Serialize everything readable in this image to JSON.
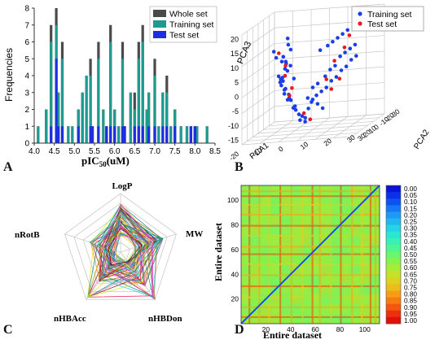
{
  "panels": {
    "a": "A",
    "b": "B",
    "c": "C",
    "d": "D"
  },
  "chart_data": [
    {
      "type": "bar",
      "xlabel": "pIC50(uM)",
      "xlabel_main": "pIC",
      "xlabel_sub": "50",
      "xlabel_unit": "(uM)",
      "ylabel": "Frequencies",
      "xlim": [
        4.0,
        8.5
      ],
      "ylim": [
        0,
        8
      ],
      "xticks": [
        "4.0",
        "4.5",
        "5.0",
        "5.5",
        "6.0",
        "6.5",
        "7.0",
        "7.5",
        "8.0",
        "8.5"
      ],
      "yticks": [
        "0",
        "1",
        "2",
        "3",
        "4",
        "5",
        "6",
        "7",
        "8"
      ],
      "legend_position": "top-right",
      "series": [
        {
          "name": "Whole set",
          "color": "#4a4a4a",
          "x": [
            4.1,
            4.3,
            4.42,
            4.55,
            4.6,
            4.7,
            4.85,
            4.95,
            5.1,
            5.2,
            5.3,
            5.4,
            5.45,
            5.6,
            5.72,
            5.8,
            5.9,
            6.0,
            6.1,
            6.2,
            6.25,
            6.4,
            6.5,
            6.6,
            6.7,
            6.8,
            6.85,
            7.0,
            7.1,
            7.2,
            7.3,
            7.4,
            7.5,
            7.65,
            7.8,
            7.9,
            8.0,
            8.05,
            8.3
          ],
          "values": [
            1,
            2,
            7,
            8,
            3,
            6,
            1,
            1,
            2,
            3,
            4,
            5,
            1,
            6,
            2,
            1,
            7,
            2,
            1,
            6,
            1,
            3,
            3,
            6,
            7,
            2,
            3,
            5,
            1,
            3,
            4,
            1,
            2,
            1,
            1,
            1,
            1,
            1,
            1
          ]
        },
        {
          "name": "Training set",
          "color": "#1e9a8e",
          "x": [
            4.1,
            4.3,
            4.42,
            4.55,
            4.6,
            4.7,
            4.85,
            4.95,
            5.1,
            5.2,
            5.3,
            5.4,
            5.45,
            5.6,
            5.72,
            5.8,
            5.9,
            6.0,
            6.1,
            6.2,
            6.25,
            6.4,
            6.5,
            6.6,
            6.7,
            6.8,
            6.85,
            7.0,
            7.1,
            7.2,
            7.3,
            7.4,
            7.5,
            7.65,
            7.8,
            7.9,
            8.0,
            8.05,
            8.3
          ],
          "values": [
            1,
            2,
            6,
            7,
            3,
            5,
            1,
            1,
            2,
            3,
            4,
            4,
            1,
            5,
            2,
            1,
            6,
            2,
            1,
            5,
            1,
            3,
            2,
            5,
            6,
            2,
            3,
            4,
            1,
            3,
            3,
            1,
            2,
            1,
            1,
            1,
            1,
            1,
            1
          ]
        },
        {
          "name": "Test set",
          "color": "#1f2ee0",
          "x": [
            4.42,
            4.55,
            4.6,
            4.7,
            5.1,
            5.4,
            5.45,
            5.6,
            5.8,
            5.9,
            6.0,
            6.2,
            6.25,
            6.5,
            6.6,
            6.7,
            6.85,
            7.0,
            7.2,
            7.3,
            7.5,
            7.9,
            8.0
          ],
          "values": [
            1,
            5,
            1,
            1,
            1,
            1,
            1,
            1,
            1,
            1,
            1,
            1,
            1,
            1,
            1,
            1,
            1,
            1,
            1,
            1,
            1,
            1,
            1
          ]
        }
      ]
    },
    {
      "type": "scatter",
      "axes": [
        "PCA1",
        "PCA2",
        "PCA3"
      ],
      "z_ticks": [
        "20",
        "15",
        "10",
        "5",
        "0",
        "-5",
        "-10",
        "-15"
      ],
      "pca1_ticks": [
        "-20",
        "-10",
        "0",
        "10",
        "20",
        "30"
      ],
      "pca2_ticks": [
        "-30",
        "-20",
        "-10",
        "0",
        "10",
        "20",
        "30"
      ],
      "legend_position": "top-right",
      "series": [
        {
          "name": "Training set",
          "color": "#1a3fe8",
          "points": [
            [
              -18,
              -12,
              12
            ],
            [
              -15,
              -10,
              10
            ],
            [
              -14,
              -8,
              9
            ],
            [
              -16,
              -14,
              14
            ],
            [
              -13,
              -9,
              7
            ],
            [
              -12,
              -8,
              6
            ],
            [
              -17,
              -11,
              5
            ],
            [
              -14,
              -10,
              4
            ],
            [
              -16,
              -9,
              3
            ],
            [
              -12,
              -12,
              2
            ],
            [
              -13,
              -11,
              1
            ],
            [
              -15,
              -8,
              0
            ],
            [
              -11,
              -10,
              -1
            ],
            [
              -14,
              -9,
              -2
            ],
            [
              -10,
              -8,
              -3
            ],
            [
              -12,
              -7,
              -4
            ],
            [
              -9,
              -9,
              -5
            ],
            [
              -11,
              -12,
              3
            ],
            [
              -13,
              -6,
              8
            ],
            [
              -10,
              -11,
              11
            ],
            [
              -8,
              -9,
              15
            ],
            [
              -6,
              -10,
              17
            ],
            [
              -7,
              -8,
              13
            ],
            [
              -9,
              -10,
              9
            ],
            [
              -5,
              -7,
              2
            ],
            [
              -4,
              -9,
              -6
            ],
            [
              -6,
              -6,
              -8
            ],
            [
              -3,
              -8,
              -9
            ],
            [
              -2,
              -7,
              -10
            ],
            [
              0,
              -6,
              -12
            ],
            [
              2,
              -5,
              -13
            ],
            [
              4,
              -4,
              -14
            ],
            [
              6,
              -3,
              -11
            ],
            [
              8,
              -2,
              -9
            ],
            [
              10,
              0,
              -7
            ],
            [
              12,
              2,
              -6
            ],
            [
              14,
              4,
              -5
            ],
            [
              16,
              6,
              -3
            ],
            [
              18,
              8,
              -2
            ],
            [
              20,
              10,
              0
            ],
            [
              22,
              12,
              1
            ],
            [
              24,
              14,
              3
            ],
            [
              26,
              16,
              4
            ],
            [
              10,
              -2,
              -4
            ],
            [
              12,
              0,
              -3
            ],
            [
              15,
              3,
              -1
            ],
            [
              17,
              5,
              1
            ],
            [
              19,
              7,
              2
            ],
            [
              21,
              9,
              5
            ],
            [
              23,
              11,
              6
            ],
            [
              25,
              13,
              7
            ],
            [
              27,
              15,
              8
            ],
            [
              13,
              1,
              9
            ],
            [
              16,
              4,
              10
            ],
            [
              18,
              6,
              11
            ],
            [
              20,
              8,
              12
            ],
            [
              22,
              10,
              13
            ],
            [
              24,
              12,
              14
            ],
            [
              5,
              -3,
              -7
            ],
            [
              7,
              -1,
              -8
            ],
            [
              9,
              1,
              -10
            ],
            [
              11,
              3,
              -12
            ],
            [
              -1,
              -5,
              -14
            ],
            [
              1,
              -3,
              -15
            ]
          ]
        },
        {
          "name": "Test set",
          "color": "#e8191f",
          "points": [
            [
              -14,
              -12,
              13
            ],
            [
              -12,
              -9,
              8
            ],
            [
              -10,
              -10,
              4
            ],
            [
              -8,
              -7,
              -1
            ],
            [
              -6,
              -9,
              -4
            ],
            [
              2,
              -4,
              -12
            ],
            [
              6,
              -2,
              -15
            ],
            [
              14,
              4,
              -2
            ],
            [
              18,
              7,
              4
            ],
            [
              22,
              11,
              8
            ],
            [
              24,
              13,
              12
            ],
            [
              26,
              15,
              15
            ],
            [
              16,
              6,
              -6
            ],
            [
              20,
              9,
              -3
            ]
          ]
        }
      ]
    },
    {
      "type": "radar",
      "axes": [
        "LogP",
        "MW",
        "nHBDon",
        "nHBAcc",
        "nRotB"
      ],
      "line_count": 60
    },
    {
      "type": "heatmap",
      "xlabel": "Entire dataset",
      "ylabel": "Entire dataset",
      "xticks": [
        "20",
        "40",
        "60",
        "80",
        "100"
      ],
      "yticks": [
        "20",
        "40",
        "60",
        "80",
        "100"
      ],
      "size": 112,
      "colorbar_ticks": [
        "0.00",
        "0.05",
        "0.10",
        "0.15",
        "0.20",
        "0.25",
        "0.30",
        "0.35",
        "0.40",
        "0.45",
        "0.50",
        "0.55",
        "0.60",
        "0.65",
        "0.70",
        "0.75",
        "0.80",
        "0.85",
        "0.90",
        "0.95",
        "1.00"
      ],
      "colorbar_colors": [
        "#0a14d8",
        "#0b30e8",
        "#0b52f0",
        "#1477f4",
        "#1f9af4",
        "#22b8ef",
        "#25d2e6",
        "#2be6d2",
        "#3af0b6",
        "#4ef594",
        "#6af56e",
        "#88f24c",
        "#a6ec38",
        "#c4e22a",
        "#dcd222",
        "#eebb1c",
        "#f69c16",
        "#f77a12",
        "#f3560f",
        "#ec300c",
        "#e0100a"
      ]
    }
  ]
}
